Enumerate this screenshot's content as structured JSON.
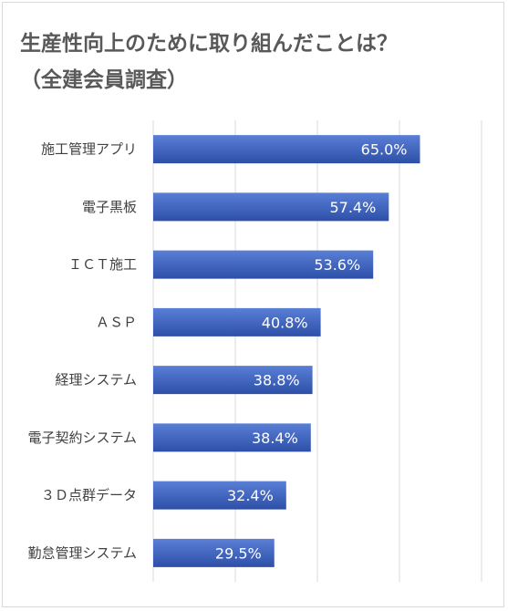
{
  "chart_data": {
    "type": "bar",
    "orientation": "horizontal",
    "title_lines": [
      "生産性向上のためにに取り組んだことは？",
      "（全建会員調査）"
    ],
    "categories": [
      "施工管理アプリ",
      "電子黒板",
      "ＩＣＴ施工",
      "ＡＳＰ",
      "経理システム",
      "電子契約システム",
      "３Ｄ点群データ",
      "勤怠管理システム"
    ],
    "values": [
      65.0,
      57.4,
      53.6,
      40.8,
      38.8,
      38.4,
      32.4,
      29.5
    ],
    "value_labels": [
      "65.0%",
      "57.4%",
      "53.6%",
      "40.8%",
      "38.8%",
      "38.4%",
      "32.4%",
      "29.5%"
    ],
    "unit": "%",
    "xlim": [
      0,
      80
    ],
    "grid": true,
    "legend": "none",
    "bar_color_top": "#5a7fd6",
    "bar_color_bottom": "#2d4fa8"
  }
}
